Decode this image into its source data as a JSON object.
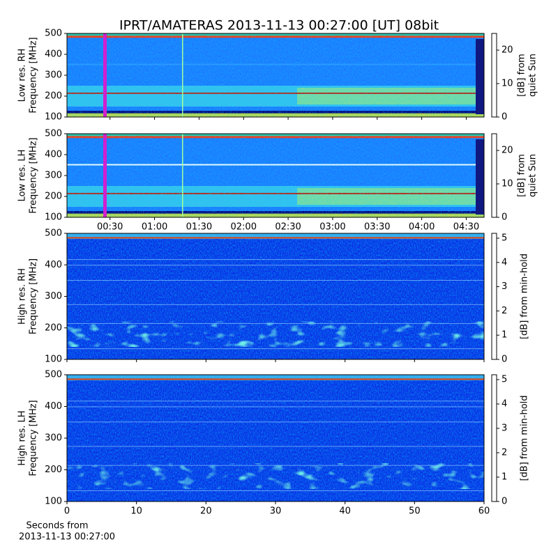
{
  "title": "IPRT/AMATERAS 2013-11-13 00:27:00 [UT]   08bit",
  "chart_data": [
    {
      "type": "heatmap",
      "ylabel": [
        "Low res. RH",
        "Frequency [MHz]"
      ],
      "ylim": [
        100,
        500
      ],
      "yticks": [
        100,
        200,
        300,
        400,
        500
      ],
      "clabel": [
        "[dB] from",
        "quiet Sun"
      ],
      "clim": [
        0,
        25
      ],
      "cticks": [
        0,
        10,
        20
      ],
      "colormap": "jet"
    },
    {
      "type": "heatmap",
      "ylabel": [
        "Low res. LH",
        "Frequency [MHz]"
      ],
      "ylim": [
        100,
        500
      ],
      "yticks": [
        100,
        200,
        300,
        400,
        500
      ],
      "clabel": [
        "[dB] from",
        "quiet Sun"
      ],
      "clim": [
        0,
        25
      ],
      "cticks": [
        0,
        10,
        20
      ],
      "colormap": "jet",
      "xlim": [
        1,
        282
      ],
      "xticks": [
        {
          "value": 30,
          "label": "00:30"
        },
        {
          "value": 60,
          "label": "01:00"
        },
        {
          "value": 90,
          "label": "01:30"
        },
        {
          "value": 120,
          "label": "02:00"
        },
        {
          "value": 150,
          "label": "02:30"
        },
        {
          "value": 180,
          "label": "03:00"
        },
        {
          "value": 210,
          "label": "03:30"
        },
        {
          "value": 240,
          "label": "04:00"
        },
        {
          "value": 270,
          "label": "04:30"
        }
      ]
    },
    {
      "type": "heatmap",
      "ylabel": [
        "High res. RH",
        "Frequency [MHz]"
      ],
      "ylim": [
        100,
        500
      ],
      "yticks": [
        100,
        200,
        300,
        400,
        500
      ],
      "clabel": [
        "[dB] from min-hold"
      ],
      "clim": [
        0,
        5.2
      ],
      "cticks": [
        0,
        1,
        2,
        3,
        4,
        5
      ],
      "colormap": "jet"
    },
    {
      "type": "heatmap",
      "ylabel": [
        "High res. LH",
        "Frequency [MHz]"
      ],
      "ylim": [
        100,
        500
      ],
      "yticks": [
        100,
        200,
        300,
        400,
        500
      ],
      "clabel": [
        "[dB] from min-hold"
      ],
      "clim": [
        0,
        5.2
      ],
      "cticks": [
        0,
        1,
        2,
        3,
        4,
        5
      ],
      "colormap": "jet",
      "xlim": [
        0,
        60
      ],
      "xticks": [
        0,
        10,
        20,
        30,
        40,
        50,
        60
      ],
      "xlabel": [
        "Seconds from",
        "2013-11-13 00:27:00"
      ]
    }
  ]
}
